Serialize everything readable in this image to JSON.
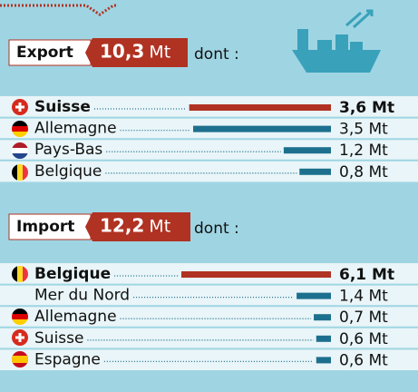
{
  "chart_data": [
    {
      "type": "bar",
      "orientation": "horizontal",
      "title": "Export",
      "total": 10.3,
      "total_label": "10,3",
      "unit": "Mt",
      "suffix": "dont :",
      "categories": [
        "Suisse",
        "Allemagne",
        "Pays-Bas",
        "Belgique"
      ],
      "values": [
        3.6,
        3.5,
        1.2,
        0.8
      ],
      "value_labels": [
        "3,6 Mt",
        "3,5 Mt",
        "1,2 Mt",
        "0,8 Mt"
      ],
      "colors": [
        "#b03222",
        "#1d6f8e",
        "#1d6f8e",
        "#1d6f8e"
      ],
      "xlim": [
        0,
        3.8
      ]
    },
    {
      "type": "bar",
      "orientation": "horizontal",
      "title": "Import",
      "total": 12.2,
      "total_label": "12,2",
      "unit": "Mt",
      "suffix": "dont :",
      "categories": [
        "Belgique",
        "Mer du Nord",
        "Allemagne",
        "Suisse",
        "Espagne"
      ],
      "values": [
        6.1,
        1.4,
        0.7,
        0.6,
        0.6
      ],
      "value_labels": [
        "6,1 Mt",
        "1,4 Mt",
        "0,7 Mt",
        "0,6 Mt",
        "0,6 Mt"
      ],
      "colors": [
        "#b03222",
        "#1d6f8e",
        "#1d6f8e",
        "#1d6f8e",
        "#1d6f8e"
      ],
      "xlim": [
        0,
        6.1
      ]
    }
  ]
}
